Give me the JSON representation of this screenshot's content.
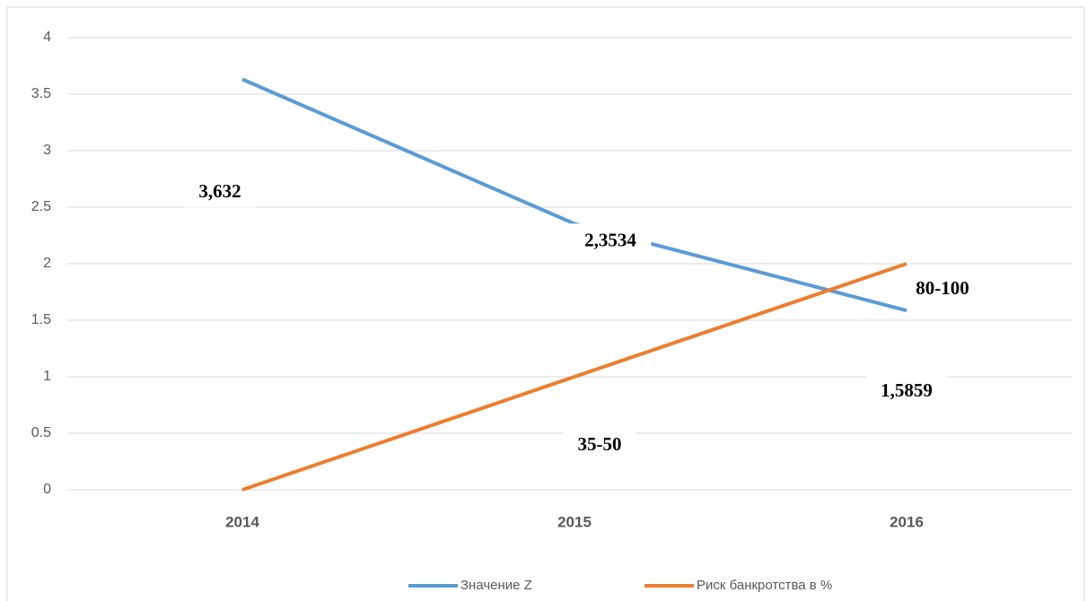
{
  "chart_data": {
    "type": "line",
    "categories": [
      "2014",
      "2015",
      "2016"
    ],
    "series": [
      {
        "name": "Значение Z",
        "color": "#5b9bd5",
        "values": [
          3.632,
          2.3534,
          1.5859
        ],
        "value_labels": [
          "3,632",
          "2,3534",
          "1,5859"
        ]
      },
      {
        "name": "Риск банкротства в %",
        "color": "#ed7d31",
        "values": [
          0,
          1,
          2
        ]
      }
    ],
    "annotations": [
      "35-50",
      "80-100"
    ],
    "ylim": [
      0,
      4
    ],
    "yticks": [
      0,
      0.5,
      1,
      1.5,
      2,
      2.5,
      3,
      3.5,
      4
    ],
    "grid": true,
    "legend": "bottom"
  }
}
